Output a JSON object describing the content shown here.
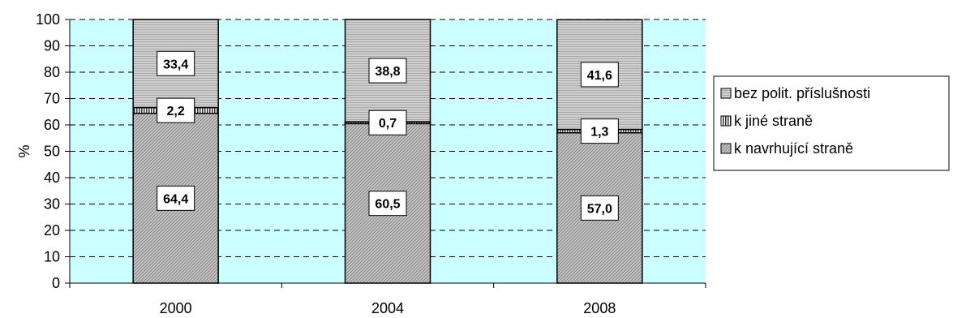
{
  "chart_data": {
    "type": "bar",
    "stacked": true,
    "categories": [
      "2000",
      "2004",
      "2008"
    ],
    "series": [
      {
        "name": "k navrhující straně",
        "values": [
          64.4,
          60.5,
          57.0
        ],
        "labels": [
          "64,4",
          "60,5",
          "57,0"
        ],
        "color": "#a6a6a6",
        "pattern": "diagonal"
      },
      {
        "name": "k jiné straně",
        "values": [
          2.2,
          0.7,
          1.3
        ],
        "labels": [
          "2,2",
          "0,7",
          "1,3"
        ],
        "color": "#555555",
        "pattern": "vertical"
      },
      {
        "name": "bez polit. příslušnosti",
        "values": [
          33.4,
          38.8,
          41.6
        ],
        "labels": [
          "33,4",
          "38,8",
          "41,6"
        ],
        "color": "#bdbdbd",
        "pattern": "horizontal"
      }
    ],
    "legend_order": [
      "bez polit. příslušnosti",
      "k jiné straně",
      "k navrhující straně"
    ],
    "ylabel": "%",
    "ylim": [
      0,
      100
    ],
    "yticks": [
      "0",
      "10",
      "20",
      "30",
      "40",
      "50",
      "60",
      "70",
      "80",
      "90",
      "100"
    ],
    "grid": true,
    "legend_position": "right",
    "plot_background": "#ccffff"
  }
}
